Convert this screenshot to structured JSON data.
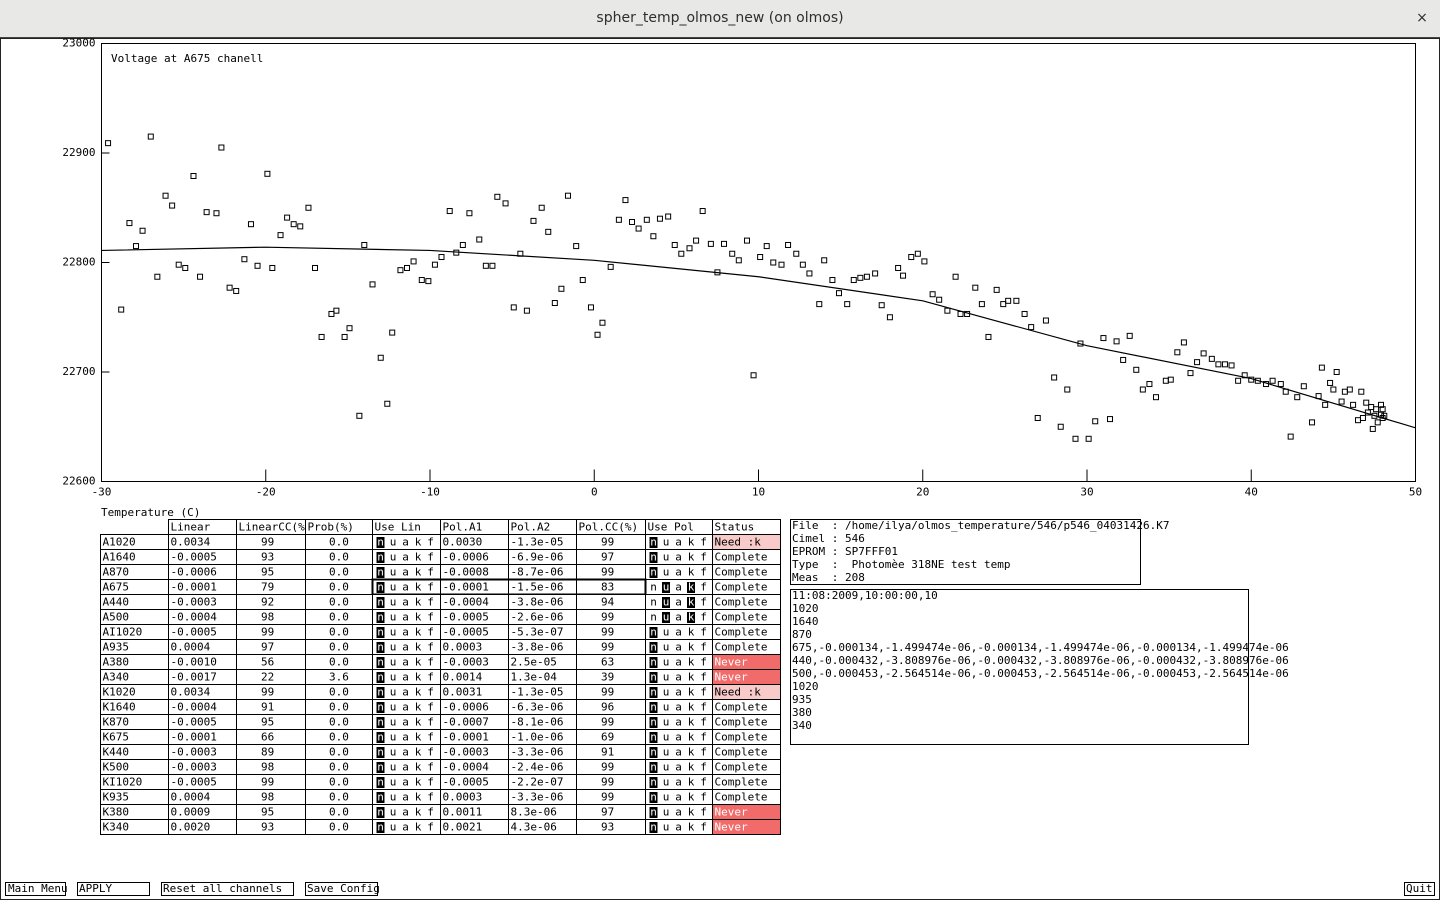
{
  "window": {
    "title": "spher_temp_olmos_new (on olmos)",
    "close": "×"
  },
  "chart_data": {
    "type": "scatter",
    "title": "Voltage at A675 chanell",
    "x_label": "Temperature (C)",
    "xlim": [
      -30,
      50
    ],
    "ylim": [
      22600,
      23000
    ],
    "xticks": [
      -30,
      -20,
      -10,
      0,
      10,
      20,
      30,
      40,
      50
    ],
    "yticks": [
      22600,
      22700,
      22800,
      22900,
      23000
    ],
    "series": [
      {
        "type": "scatter",
        "color": "#000000",
        "x": [
          -29.6,
          -28.8,
          -28.3,
          -27.9,
          -27.5,
          -27.0,
          -26.6,
          -26.1,
          -25.7,
          -25.3,
          -24.9,
          -24.4,
          -24.0,
          -23.6,
          -23.0,
          -22.7,
          -22.2,
          -21.8,
          -21.3,
          -20.9,
          -20.5,
          -19.9,
          -19.6,
          -19.1,
          -18.7,
          -18.3,
          -17.9,
          -17.4,
          -17.0,
          -16.6,
          -16.0,
          -15.7,
          -15.2,
          -14.9,
          -14.3,
          -14.0,
          -13.5,
          -13.0,
          -12.6,
          -12.3,
          -11.8,
          -11.4,
          -11.0,
          -10.5,
          -10.1,
          -9.7,
          -9.3,
          -8.8,
          -8.4,
          -8.0,
          -7.6,
          -7.0,
          -6.6,
          -6.2,
          -5.9,
          -5.4,
          -4.9,
          -4.5,
          -4.1,
          -3.7,
          -3.2,
          -2.8,
          -2.4,
          -2.0,
          -1.6,
          -1.1,
          -0.7,
          -0.2,
          0.2,
          0.5,
          1.0,
          1.5,
          1.9,
          2.3,
          2.7,
          3.2,
          3.6,
          4.0,
          4.5,
          4.9,
          5.3,
          5.8,
          6.2,
          6.6,
          7.1,
          7.5,
          7.9,
          8.4,
          8.8,
          9.3,
          9.7,
          10.1,
          10.5,
          10.9,
          11.4,
          11.8,
          12.3,
          12.7,
          13.1,
          13.7,
          14.0,
          14.5,
          14.9,
          15.4,
          15.8,
          16.2,
          16.6,
          17.1,
          17.5,
          18.0,
          18.5,
          18.8,
          19.3,
          19.7,
          20.1,
          20.6,
          21.0,
          21.5,
          22.0,
          22.3,
          22.7,
          23.2,
          23.6,
          24.0,
          24.5,
          24.9,
          25.2,
          25.7,
          26.2,
          26.6,
          27.0,
          27.5,
          28.0,
          28.4,
          28.8,
          29.3,
          29.6,
          30.1,
          30.5,
          31.0,
          31.4,
          31.8,
          32.2,
          32.6,
          33.0,
          33.4,
          33.8,
          34.2,
          34.8,
          35.1,
          35.5,
          35.9,
          36.3,
          36.7,
          37.1,
          37.6,
          38.0,
          38.4,
          38.8,
          39.2,
          39.6,
          40.0,
          40.4,
          40.9,
          41.3,
          41.8,
          42.1,
          42.4,
          42.8,
          43.2,
          43.7,
          44.1,
          44.3,
          44.5,
          44.8,
          45.0,
          45.2,
          45.5,
          45.7,
          46.0,
          46.2,
          46.5,
          46.7,
          46.8,
          47.0,
          47.1,
          47.3,
          47.4,
          47.5,
          47.6,
          47.7,
          47.9,
          47.9,
          48.0,
          48.0,
          48.1
        ],
        "values": [
          22909,
          22757,
          22836,
          22815,
          22829,
          22915,
          22787,
          22861,
          22852,
          22798,
          22795,
          22879,
          22787,
          22846,
          22845,
          22905,
          22777,
          22774,
          22803,
          22835,
          22797,
          22881,
          22795,
          22825,
          22841,
          22835,
          22833,
          22850,
          22795,
          22732,
          22753,
          22756,
          22732,
          22740,
          22660,
          22816,
          22780,
          22713,
          22671,
          22736,
          22793,
          22795,
          22801,
          22784,
          22783,
          22798,
          22805,
          22847,
          22809,
          22816,
          22845,
          22821,
          22797,
          22797,
          22860,
          22854,
          22759,
          22808,
          22756,
          22838,
          22850,
          22828,
          22763,
          22776,
          22861,
          22815,
          22784,
          22759,
          22734,
          22745,
          22796,
          22839,
          22857,
          22837,
          22831,
          22839,
          22824,
          22840,
          22842,
          22816,
          22808,
          22813,
          22820,
          22847,
          22817,
          22791,
          22817,
          22808,
          22802,
          22820,
          22697,
          22805,
          22815,
          22800,
          22798,
          22816,
          22808,
          22798,
          22790,
          22762,
          22802,
          22784,
          22772,
          22762,
          22784,
          22786,
          22787,
          22790,
          22761,
          22750,
          22795,
          22788,
          22805,
          22808,
          22801,
          22771,
          22766,
          22756,
          22787,
          22753,
          22753,
          22777,
          22762,
          22732,
          22775,
          22762,
          22765,
          22765,
          22753,
          22741,
          22658,
          22747,
          22695,
          22650,
          22684,
          22639,
          22726,
          22639,
          22655,
          22731,
          22657,
          22728,
          22711,
          22733,
          22702,
          22684,
          22689,
          22677,
          22692,
          22693,
          22718,
          22727,
          22699,
          22709,
          22717,
          22712,
          22707,
          22707,
          22706,
          22692,
          22697,
          22693,
          22692,
          22689,
          22692,
          22689,
          22682,
          22641,
          22677,
          22687,
          22654,
          22678,
          22704,
          22670,
          22690,
          22684,
          22700,
          22673,
          22682,
          22684,
          22670,
          22656,
          22682,
          22658,
          22672,
          22663,
          22668,
          22648,
          22660,
          22666,
          22654,
          22670,
          22661,
          22658,
          22666,
          22660
        ]
      },
      {
        "type": "line",
        "color": "#000000",
        "x": [
          -30,
          -20,
          -10,
          0,
          10,
          20,
          30,
          40,
          50
        ],
        "values": [
          22811,
          22814,
          22811,
          22802,
          22787,
          22765,
          22724,
          22694,
          22649
        ]
      }
    ]
  },
  "table": {
    "headers": [
      "Linear",
      "LinearCC(%)",
      "Prob(%)",
      "Use Lin",
      "Pol.A1",
      "Pol.A2",
      "Pol.CC(%)",
      "Use Pol",
      "Status"
    ],
    "flags": [
      "n",
      "u",
      "a",
      "k",
      "f"
    ],
    "selected_row": 3,
    "rows": [
      {
        "cells": [
          "A1020",
          "0.0034",
          "99",
          "0.0",
          "0.0030",
          "-1.3e-05",
          "99",
          "Need :k"
        ],
        "use_lin": [
          0
        ],
        "use_pol": [
          0
        ],
        "status_color": "#f8caca"
      },
      {
        "cells": [
          "A1640",
          "-0.0005",
          "93",
          "0.0",
          "-0.0006",
          "-6.9e-06",
          "97",
          "Complete"
        ],
        "use_lin": [
          0
        ],
        "use_pol": [
          0
        ]
      },
      {
        "cells": [
          "A870",
          "-0.0006",
          "95",
          "0.0",
          "-0.0008",
          "-8.7e-06",
          "99",
          "Complete"
        ],
        "use_lin": [
          0
        ],
        "use_pol": [
          0
        ]
      },
      {
        "cells": [
          "A675",
          "-0.0001",
          "79",
          "0.0",
          "-0.0001",
          "-1.5e-06",
          "83",
          "Complete"
        ],
        "use_lin": [
          0
        ],
        "use_pol": [
          1,
          3
        ]
      },
      {
        "cells": [
          "A440",
          "-0.0003",
          "92",
          "0.0",
          "-0.0004",
          "-3.8e-06",
          "94",
          "Complete"
        ],
        "use_lin": [
          0
        ],
        "use_pol": [
          1,
          3
        ]
      },
      {
        "cells": [
          "A500",
          "-0.0004",
          "98",
          "0.0",
          "-0.0005",
          "-2.6e-06",
          "99",
          "Complete"
        ],
        "use_lin": [
          0
        ],
        "use_pol": [
          1,
          3
        ]
      },
      {
        "cells": [
          "AI1020",
          "-0.0005",
          "99",
          "0.0",
          "-0.0005",
          "-5.3e-07",
          "99",
          "Complete"
        ],
        "use_lin": [
          0
        ],
        "use_pol": [
          0
        ]
      },
      {
        "cells": [
          "A935",
          "0.0004",
          "97",
          "0.0",
          "0.0003",
          "-3.8e-06",
          "99",
          "Complete"
        ],
        "use_lin": [
          0
        ],
        "use_pol": [
          0
        ]
      },
      {
        "cells": [
          "A380",
          "-0.0010",
          "56",
          "0.0",
          "-0.0003",
          "2.5e-05",
          "63",
          "Never"
        ],
        "use_lin": [
          0
        ],
        "use_pol": [
          0
        ],
        "status_color": "#f26b6b"
      },
      {
        "cells": [
          "A340",
          "-0.0017",
          "22",
          "3.6",
          "0.0014",
          "1.3e-04",
          "39",
          "Never"
        ],
        "use_lin": [
          0
        ],
        "use_pol": [
          0
        ],
        "status_color": "#f26b6b"
      },
      {
        "cells": [
          "K1020",
          "0.0034",
          "99",
          "0.0",
          "0.0031",
          "-1.3e-05",
          "99",
          "Need :k"
        ],
        "use_lin": [
          0
        ],
        "use_pol": [
          0
        ],
        "status_color": "#f8caca"
      },
      {
        "cells": [
          "K1640",
          "-0.0004",
          "91",
          "0.0",
          "-0.0006",
          "-6.3e-06",
          "96",
          "Complete"
        ],
        "use_lin": [
          0
        ],
        "use_pol": [
          0
        ]
      },
      {
        "cells": [
          "K870",
          "-0.0005",
          "95",
          "0.0",
          "-0.0007",
          "-8.1e-06",
          "99",
          "Complete"
        ],
        "use_lin": [
          0
        ],
        "use_pol": [
          0
        ]
      },
      {
        "cells": [
          "K675",
          "-0.0001",
          "66",
          "0.0",
          "-0.0001",
          "-1.0e-06",
          "69",
          "Complete"
        ],
        "use_lin": [
          0
        ],
        "use_pol": [
          0
        ]
      },
      {
        "cells": [
          "K440",
          "-0.0003",
          "89",
          "0.0",
          "-0.0003",
          "-3.3e-06",
          "91",
          "Complete"
        ],
        "use_lin": [
          0
        ],
        "use_pol": [
          0
        ]
      },
      {
        "cells": [
          "K500",
          "-0.0003",
          "98",
          "0.0",
          "-0.0004",
          "-2.4e-06",
          "99",
          "Complete"
        ],
        "use_lin": [
          0
        ],
        "use_pol": [
          0
        ]
      },
      {
        "cells": [
          "KI1020",
          "-0.0005",
          "99",
          "0.0",
          "-0.0005",
          "-2.2e-07",
          "99",
          "Complete"
        ],
        "use_lin": [
          0
        ],
        "use_pol": [
          0
        ]
      },
      {
        "cells": [
          "K935",
          "0.0004",
          "98",
          "0.0",
          "0.0003",
          "-3.3e-06",
          "99",
          "Complete"
        ],
        "use_lin": [
          0
        ],
        "use_pol": [
          0
        ]
      },
      {
        "cells": [
          "K380",
          "0.0009",
          "95",
          "0.0",
          "0.0011",
          "8.3e-06",
          "97",
          "Never"
        ],
        "use_lin": [
          0
        ],
        "use_pol": [
          0
        ],
        "status_color": "#f26b6b"
      },
      {
        "cells": [
          "K340",
          "0.0020",
          "93",
          "0.0",
          "0.0021",
          "4.3e-06",
          "93",
          "Never"
        ],
        "use_lin": [
          0
        ],
        "use_pol": [
          0
        ],
        "status_color": "#f26b6b"
      }
    ]
  },
  "info": [
    "File  : /home/ilya/olmos_temperature/546/p546_04031426.K7",
    "Cimel : 546",
    "EPROM : SP7FFF01",
    "Type  :  Photomèe 318NE test temp",
    "Meas  : 208"
  ],
  "log": [
    "11:08:2009,10:00:00,10",
    "1020",
    "1640",
    "870",
    "675,-0.000134,-1.499474e-06,-0.000134,-1.499474e-06,-0.000134,-1.499474e-06",
    "440,-0.000432,-3.808976e-06,-0.000432,-3.808976e-06,-0.000432,-3.808976e-06",
    "500,-0.000453,-2.564514e-06,-0.000453,-2.564514e-06,-0.000453,-2.564514e-06",
    "1020",
    "935",
    "380",
    "340"
  ],
  "buttons": {
    "main_menu": "Main Menu",
    "apply": "APPLY",
    "reset": "Reset all channels",
    "save": "Save Config",
    "quit": "Quit"
  }
}
